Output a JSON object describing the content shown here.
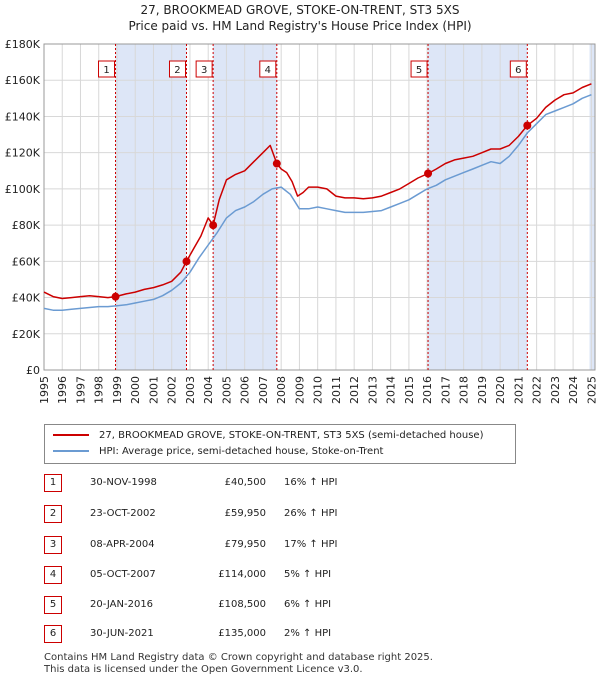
{
  "title": {
    "line1": "27, BROOKMEAD GROVE, STOKE-ON-TRENT, ST3 5XS",
    "line2": "Price paid vs. HM Land Registry's House Price Index (HPI)"
  },
  "legend": {
    "property_label": "27, BROOKMEAD GROVE, STOKE-ON-TRENT, ST3 5XS (semi-detached house)",
    "hpi_label": "HPI: Average price, semi-detached house, Stoke-on-Trent",
    "property_color": "#cc0000",
    "hpi_color": "#6b9bd2"
  },
  "chart_data": {
    "type": "line",
    "xlim": [
      1995,
      2025.2
    ],
    "ylim": [
      0,
      180000
    ],
    "y_ticks": [
      0,
      20000,
      40000,
      60000,
      80000,
      100000,
      120000,
      140000,
      160000,
      180000
    ],
    "y_tick_labels": [
      "£0",
      "£20K",
      "£40K",
      "£60K",
      "£80K",
      "£100K",
      "£120K",
      "£140K",
      "£160K",
      "£180K"
    ],
    "x_ticks": [
      1995,
      1996,
      1997,
      1998,
      1999,
      2000,
      2001,
      2002,
      2003,
      2004,
      2005,
      2006,
      2007,
      2008,
      2009,
      2010,
      2011,
      2012,
      2013,
      2014,
      2015,
      2016,
      2017,
      2018,
      2019,
      2020,
      2021,
      2022,
      2023,
      2024,
      2025
    ],
    "x_tick_labels": [
      "1995",
      "1996",
      "1997",
      "1998",
      "1999",
      "2000",
      "2001",
      "2002",
      "2003",
      "2004",
      "2005",
      "2006",
      "2007",
      "2008",
      "2009",
      "2010",
      "2011",
      "2012",
      "2013",
      "2014",
      "2015",
      "2016",
      "2017",
      "2018",
      "2019",
      "2020",
      "2021",
      "2022",
      "2023",
      "2024",
      "2025"
    ],
    "series": [
      {
        "name": "27, BROOKMEAD GROVE, STOKE-ON-TRENT, ST3 5XS (semi-detached house)",
        "color": "#cc0000",
        "x": [
          1995.0,
          1995.5,
          1996.0,
          1996.5,
          1997.0,
          1997.5,
          1998.0,
          1998.5,
          1998.92,
          1999.5,
          2000.0,
          2000.5,
          2001.0,
          2001.5,
          2002.0,
          2002.5,
          2002.81,
          2003.2,
          2003.6,
          2004.0,
          2004.27,
          2004.6,
          2005.0,
          2005.5,
          2006.0,
          2006.5,
          2007.0,
          2007.4,
          2007.76,
          2008.0,
          2008.3,
          2008.6,
          2008.9,
          2009.2,
          2009.5,
          2010.0,
          2010.5,
          2011.0,
          2011.5,
          2012.0,
          2012.5,
          2013.0,
          2013.5,
          2014.0,
          2014.5,
          2015.0,
          2015.5,
          2016.05,
          2016.5,
          2017.0,
          2017.5,
          2018.0,
          2018.5,
          2019.0,
          2019.5,
          2020.0,
          2020.5,
          2021.0,
          2021.49,
          2022.0,
          2022.5,
          2023.0,
          2023.5,
          2024.0,
          2024.5,
          2025.0
        ],
        "values": [
          43000,
          40500,
          39500,
          40000,
          40500,
          41000,
          40500,
          40000,
          40500,
          42000,
          43000,
          44500,
          45500,
          47000,
          49000,
          54000,
          59950,
          67000,
          74000,
          84000,
          79950,
          94000,
          105000,
          108000,
          110000,
          115000,
          120000,
          124000,
          114000,
          111000,
          109000,
          104000,
          96000,
          98000,
          101000,
          101000,
          100000,
          96000,
          95000,
          95000,
          94500,
          95000,
          96000,
          98000,
          100000,
          103000,
          106000,
          108500,
          111000,
          114000,
          116000,
          117000,
          118000,
          120000,
          122000,
          122000,
          124000,
          129000,
          135000,
          139000,
          145000,
          149000,
          152000,
          153000,
          156000,
          158000
        ]
      },
      {
        "name": "HPI: Average price, semi-detached house, Stoke-on-Trent",
        "color": "#6b9bd2",
        "x": [
          1995.0,
          1995.5,
          1996.0,
          1996.5,
          1997.0,
          1997.5,
          1998.0,
          1998.5,
          1999.0,
          1999.5,
          2000.0,
          2000.5,
          2001.0,
          2001.5,
          2002.0,
          2002.5,
          2003.0,
          2003.5,
          2004.0,
          2004.5,
          2005.0,
          2005.5,
          2006.0,
          2006.5,
          2007.0,
          2007.5,
          2008.0,
          2008.5,
          2009.0,
          2009.5,
          2010.0,
          2010.5,
          2011.0,
          2011.5,
          2012.0,
          2012.5,
          2013.0,
          2013.5,
          2014.0,
          2014.5,
          2015.0,
          2015.5,
          2016.0,
          2016.5,
          2017.0,
          2017.5,
          2018.0,
          2018.5,
          2019.0,
          2019.5,
          2020.0,
          2020.5,
          2021.0,
          2021.5,
          2022.0,
          2022.5,
          2023.0,
          2023.5,
          2024.0,
          2024.5,
          2025.0
        ],
        "values": [
          34000,
          33000,
          33000,
          33500,
          34000,
          34500,
          35000,
          35000,
          35500,
          36000,
          37000,
          38000,
          39000,
          41000,
          44000,
          48000,
          54000,
          62000,
          69000,
          76000,
          84000,
          88000,
          90000,
          93000,
          97000,
          100000,
          101000,
          97000,
          89000,
          89000,
          90000,
          89000,
          88000,
          87000,
          87000,
          87000,
          87500,
          88000,
          90000,
          92000,
          94000,
          97000,
          100000,
          102000,
          105000,
          107000,
          109000,
          111000,
          113000,
          115000,
          114000,
          118000,
          124000,
          131000,
          136000,
          141000,
          143000,
          145000,
          147000,
          150000,
          152000
        ]
      }
    ],
    "sales": [
      {
        "label": "1",
        "x": 1998.92,
        "value": 40500
      },
      {
        "label": "2",
        "x": 2002.81,
        "value": 59950
      },
      {
        "label": "3",
        "x": 2004.27,
        "value": 79950
      },
      {
        "label": "4",
        "x": 2007.76,
        "value": 114000
      },
      {
        "label": "5",
        "x": 2016.05,
        "value": 108500
      },
      {
        "label": "6",
        "x": 2021.49,
        "value": 135000
      }
    ],
    "shaded_spans": [
      [
        1998.92,
        2002.81
      ],
      [
        2004.27,
        2007.76
      ],
      [
        2016.05,
        2021.49
      ],
      [
        2024.9,
        2025.2
      ]
    ],
    "span_color": "#dde6f7",
    "grid": true
  },
  "transactions": [
    {
      "num": "1",
      "date": "30-NOV-1998",
      "price": "£40,500",
      "hpi": "16% ↑ HPI"
    },
    {
      "num": "2",
      "date": "23-OCT-2002",
      "price": "£59,950",
      "hpi": "26% ↑ HPI"
    },
    {
      "num": "3",
      "date": "08-APR-2004",
      "price": "£79,950",
      "hpi": "17% ↑ HPI"
    },
    {
      "num": "4",
      "date": "05-OCT-2007",
      "price": "£114,000",
      "hpi": "5% ↑ HPI"
    },
    {
      "num": "5",
      "date": "20-JAN-2016",
      "price": "£108,500",
      "hpi": "6% ↑ HPI"
    },
    {
      "num": "6",
      "date": "30-JUN-2021",
      "price": "£135,000",
      "hpi": "2% ↑ HPI"
    }
  ],
  "footer": {
    "line1": "Contains HM Land Registry data © Crown copyright and database right 2025.",
    "line2": "This data is licensed under the Open Government Licence v3.0."
  }
}
